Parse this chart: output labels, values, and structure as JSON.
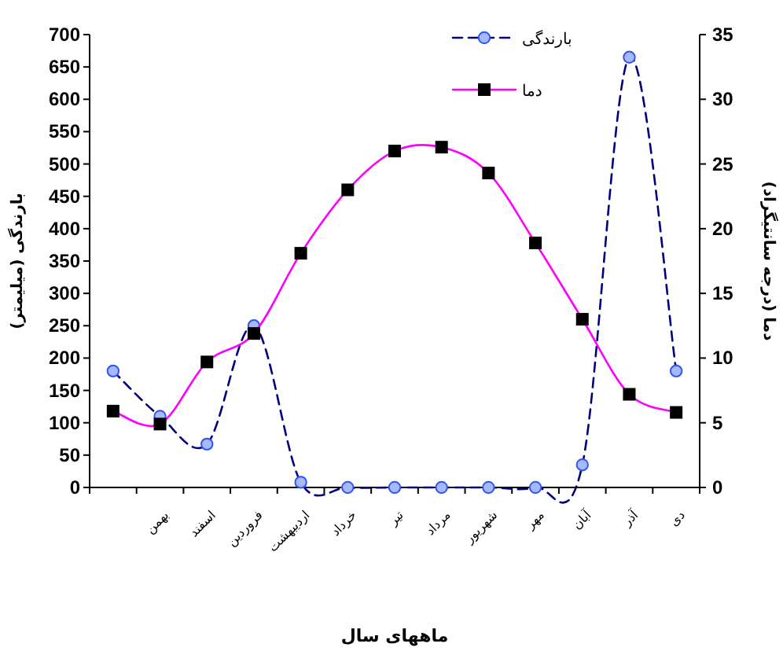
{
  "chart_data": {
    "type": "line",
    "categories": [
      null,
      "بهمن",
      "اسفند",
      "فروردین",
      "اردیبهشت",
      "خرداد",
      "تیر",
      "مرداد",
      "شهریور",
      "مهر",
      "آبان",
      "آذر",
      "دی"
    ],
    "xlabel": "ماههای سال",
    "ylabel": "بارندگی (میلیمتر)",
    "y2label": "دما (درجه سانتیگراد)",
    "series": [
      {
        "name": "بارندگی",
        "color": "#000080",
        "marker": "circle",
        "line_style": "dashed",
        "values": [
          180,
          110,
          67,
          250,
          8,
          0,
          0,
          0,
          0,
          0,
          35,
          665,
          180
        ]
      },
      {
        "name": "دما",
        "color": "#ff00ff",
        "marker": "square",
        "line_style": "solid",
        "axis": "y2",
        "values": [
          5.9,
          4.9,
          9.7,
          11.9,
          18.1,
          23,
          26,
          26.3,
          24.3,
          18.9,
          13,
          7.2,
          5.8
        ]
      }
    ],
    "ylim": [
      0,
      700
    ],
    "yticks": [
      0,
      50,
      100,
      150,
      200,
      250,
      300,
      350,
      400,
      450,
      500,
      550,
      600,
      650,
      700
    ],
    "y2lim": [
      0,
      35
    ],
    "y2ticks": [
      0,
      5,
      10,
      15,
      20,
      25,
      30,
      35
    ],
    "legend": "top right",
    "grid": false
  }
}
